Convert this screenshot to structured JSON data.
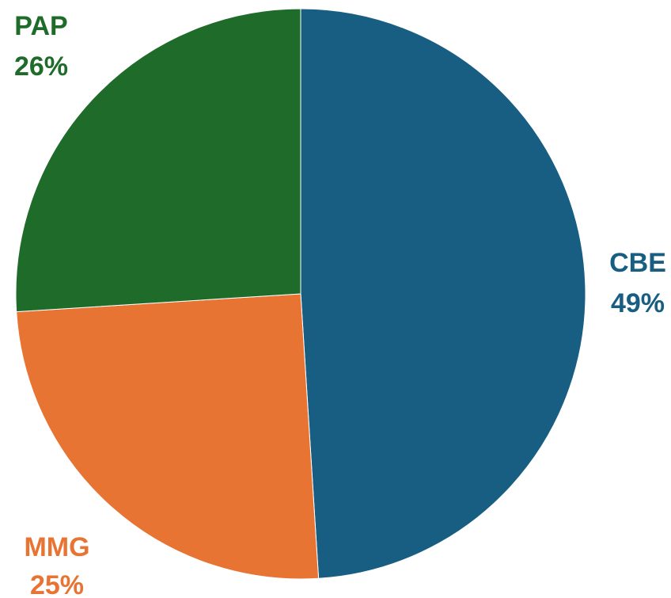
{
  "chart_data": {
    "type": "pie",
    "slices": [
      {
        "label": "CBE",
        "value": 49,
        "value_label": "49%",
        "color": "#175e82"
      },
      {
        "label": "MMG",
        "value": 25,
        "value_label": "25%",
        "color": "#e87433"
      },
      {
        "label": "PAP",
        "value": 26,
        "value_label": "26%",
        "color": "#1e6b2a"
      }
    ],
    "start": "12 o'clock",
    "direction": "clockwise",
    "legend": "none"
  }
}
